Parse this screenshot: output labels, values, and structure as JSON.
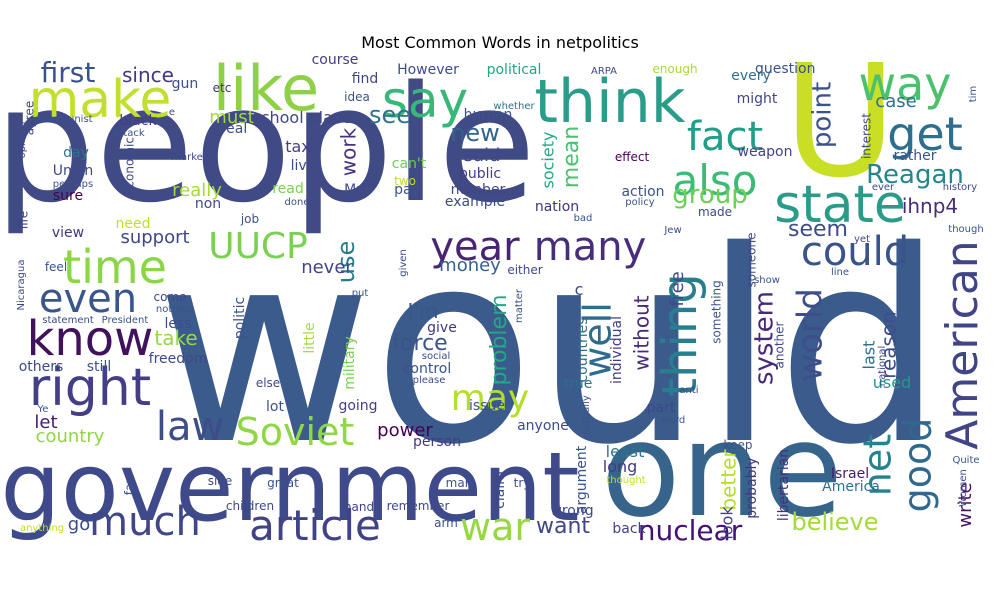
{
  "chart_data": {
    "type": "wordcloud",
    "title": "Most Common Words in netpolitics",
    "palette": "viridis",
    "words": [
      {
        "text": "would",
        "color": "#3b5b8c"
      },
      {
        "text": "people",
        "color": "#404a85"
      },
      {
        "text": "one",
        "color": "#36648b"
      },
      {
        "text": "U",
        "color": "#c8df26"
      },
      {
        "text": "government",
        "color": "#3f4a8a"
      },
      {
        "text": "think",
        "color": "#2a9d8a"
      },
      {
        "text": "like",
        "color": "#8ed147"
      },
      {
        "text": "say",
        "color": "#37b878"
      },
      {
        "text": "make",
        "color": "#c3df2d"
      },
      {
        "text": "way",
        "color": "#4ac16d"
      },
      {
        "text": "get",
        "color": "#2e6e8e"
      },
      {
        "text": "state",
        "color": "#2a9b88"
      },
      {
        "text": "fact",
        "color": "#1f9f88"
      },
      {
        "text": "also",
        "color": "#3bbb75"
      },
      {
        "text": "right",
        "color": "#433e85"
      },
      {
        "text": "know",
        "color": "#41125c"
      },
      {
        "text": "time",
        "color": "#8bd646"
      },
      {
        "text": "even",
        "color": "#39568c"
      },
      {
        "text": "year",
        "color": "#482475"
      },
      {
        "text": "many",
        "color": "#472d7b"
      },
      {
        "text": "could",
        "color": "#3a538b"
      },
      {
        "text": "UUCP",
        "color": "#7ad151"
      },
      {
        "text": "well",
        "color": "#2f6b8e"
      },
      {
        "text": "thing",
        "color": "#287d8e"
      },
      {
        "text": "American",
        "color": "#414487"
      },
      {
        "text": "world",
        "color": "#3d4e8a"
      },
      {
        "text": "law",
        "color": "#3d4d8a"
      },
      {
        "text": "Soviet",
        "color": "#8fd744"
      },
      {
        "text": "article",
        "color": "#414287"
      },
      {
        "text": "much",
        "color": "#404688"
      },
      {
        "text": "war",
        "color": "#95d840"
      },
      {
        "text": "good",
        "color": "#31688e"
      },
      {
        "text": "net",
        "color": "#26828e"
      },
      {
        "text": "may",
        "color": "#b5de2b"
      },
      {
        "text": "nuclear",
        "color": "#440f76"
      },
      {
        "text": "believe",
        "color": "#a5db36"
      },
      {
        "text": "Reagan",
        "color": "#25858e"
      },
      {
        "text": "group",
        "color": "#6ece58"
      },
      {
        "text": "point",
        "color": "#3b528b"
      },
      {
        "text": "seem",
        "color": "#3d4d8a"
      },
      {
        "text": "first",
        "color": "#3b528b"
      },
      {
        "text": "since",
        "color": "#453781"
      },
      {
        "text": "see",
        "color": "#2c738e"
      },
      {
        "text": "new",
        "color": "#33638d"
      },
      {
        "text": "said",
        "color": "#3e4a89"
      },
      {
        "text": "mean",
        "color": "#4ac16d"
      },
      {
        "text": "use",
        "color": "#287c8e"
      },
      {
        "text": "work",
        "color": "#46327e"
      },
      {
        "text": "problem",
        "color": "#22a884"
      },
      {
        "text": "I'm",
        "color": "#39568c"
      },
      {
        "text": "force",
        "color": "#3b528b"
      },
      {
        "text": "system",
        "color": "#482878"
      },
      {
        "text": "reason",
        "color": "#3e4c8a"
      },
      {
        "text": "want",
        "color": "#414487"
      },
      {
        "text": "country",
        "color": "#8fd744"
      },
      {
        "text": "ihnp4",
        "color": "#472c7a"
      },
      {
        "text": "support",
        "color": "#3f4788"
      },
      {
        "text": "never",
        "color": "#414487"
      },
      {
        "text": "take",
        "color": "#95d840"
      },
      {
        "text": "money",
        "color": "#33638d"
      },
      {
        "text": "really",
        "color": "#a2da37"
      },
      {
        "text": "without",
        "color": "#472a7a"
      },
      {
        "text": "power",
        "color": "#440154"
      },
      {
        "text": "let",
        "color": "#481a6c"
      },
      {
        "text": "go",
        "color": "#3e4989"
      },
      {
        "text": "free",
        "color": "#3f4889"
      },
      {
        "text": "better",
        "color": "#b5de2b"
      },
      {
        "text": "write",
        "color": "#471164"
      },
      {
        "text": "used",
        "color": "#1f9a8a"
      },
      {
        "text": "last",
        "color": "#2d708e"
      },
      {
        "text": "case",
        "color": "#2c728e"
      },
      {
        "text": "least",
        "color": "#2c738e"
      },
      {
        "text": "long",
        "color": "#443a83"
      },
      {
        "text": "look",
        "color": "#433e85"
      },
      {
        "text": "America",
        "color": "#2d718e"
      },
      {
        "text": "Israel",
        "color": "#48196b"
      },
      {
        "text": "libertarian",
        "color": "#46307e"
      },
      {
        "text": "probably",
        "color": "#453581"
      },
      {
        "text": "keep",
        "color": "#3b528b"
      },
      {
        "text": "must",
        "color": "#a2da37"
      },
      {
        "text": "school",
        "color": "#404688"
      },
      {
        "text": "place",
        "color": "#3f4788"
      },
      {
        "text": "tax",
        "color": "#424086"
      },
      {
        "text": "live",
        "color": "#3e4a89"
      },
      {
        "text": "read",
        "color": "#7ad151"
      },
      {
        "text": "pay",
        "color": "#3b528b"
      },
      {
        "text": "can't",
        "color": "#6ece58"
      },
      {
        "text": "two",
        "color": "#c0df25"
      },
      {
        "text": "Mr",
        "color": "#3d4d8a"
      },
      {
        "text": "non",
        "color": "#3e4a89"
      },
      {
        "text": "job",
        "color": "#3b528b"
      },
      {
        "text": "need",
        "color": "#c0df25"
      },
      {
        "text": "view",
        "color": "#453781"
      },
      {
        "text": "day",
        "color": "#2c738e"
      },
      {
        "text": "Union",
        "color": "#3e4989"
      },
      {
        "text": "sure",
        "color": "#440154"
      },
      {
        "text": "black",
        "color": "#433d84"
      },
      {
        "text": "real",
        "color": "#3e4c8a"
      },
      {
        "text": "etc",
        "color": "#46317e"
      },
      {
        "text": "gun",
        "color": "#3d4d8a"
      },
      {
        "text": "course",
        "color": "#433e85"
      },
      {
        "text": "find",
        "color": "#404588"
      },
      {
        "text": "idea",
        "color": "#3b528b"
      },
      {
        "text": "However",
        "color": "#3e4c8a"
      },
      {
        "text": "political",
        "color": "#21a685"
      },
      {
        "text": "whether",
        "color": "#2c738e"
      },
      {
        "text": "ARPA",
        "color": "#3e4989"
      },
      {
        "text": "enough",
        "color": "#a8db34"
      },
      {
        "text": "every",
        "color": "#2d708e"
      },
      {
        "text": "question",
        "color": "#3b528b"
      },
      {
        "text": "might",
        "color": "#3f4788"
      },
      {
        "text": "interest",
        "color": "#3e4989"
      },
      {
        "text": "human",
        "color": "#3b528b"
      },
      {
        "text": "society",
        "color": "#22a884"
      },
      {
        "text": "public",
        "color": "#433e85"
      },
      {
        "text": "number",
        "color": "#404588"
      },
      {
        "text": "example",
        "color": "#3e4c8a"
      },
      {
        "text": "nation",
        "color": "#46327e"
      },
      {
        "text": "action",
        "color": "#3b528b"
      },
      {
        "text": "policy",
        "color": "#3b528b"
      },
      {
        "text": "made",
        "color": "#3e4989"
      },
      {
        "text": "effect",
        "color": "#440154"
      },
      {
        "text": "weapon",
        "color": "#404588"
      },
      {
        "text": "rather",
        "color": "#3b528b"
      },
      {
        "text": "history",
        "color": "#3e4989"
      },
      {
        "text": "ever",
        "color": "#3e4989"
      },
      {
        "text": "bad",
        "color": "#3b528b"
      },
      {
        "text": "give",
        "color": "#453581"
      },
      {
        "text": "control",
        "color": "#3b528b"
      },
      {
        "text": "social",
        "color": "#3e4989"
      },
      {
        "text": "please",
        "color": "#3e4c8a"
      },
      {
        "text": "countries",
        "color": "#2d708e"
      },
      {
        "text": "individual",
        "color": "#433e85"
      },
      {
        "text": "true",
        "color": "#2d708e"
      },
      {
        "text": "part",
        "color": "#3f4788"
      },
      {
        "text": "anti",
        "color": "#3e4989"
      },
      {
        "text": "word",
        "color": "#3b528b"
      },
      {
        "text": "issue",
        "color": "#3b528b"
      },
      {
        "text": "person",
        "color": "#453781"
      },
      {
        "text": "anyone",
        "color": "#3e4c8a"
      },
      {
        "text": "wrong",
        "color": "#3f4788"
      },
      {
        "text": "back",
        "color": "#404588"
      },
      {
        "text": "argument",
        "color": "#3b528b"
      },
      {
        "text": "claim",
        "color": "#3e4989"
      },
      {
        "text": "try",
        "color": "#3e4c8a"
      },
      {
        "text": "man",
        "color": "#3b528b"
      },
      {
        "text": "remember",
        "color": "#3e4989"
      },
      {
        "text": "arm",
        "color": "#3b528b"
      },
      {
        "text": "hand",
        "color": "#404588"
      },
      {
        "text": "great",
        "color": "#3b528b"
      },
      {
        "text": "side",
        "color": "#3e4989"
      },
      {
        "text": "children",
        "color": "#3f4788"
      },
      {
        "text": "far",
        "color": "#3b528b"
      },
      {
        "text": "anything",
        "color": "#c0df25"
      },
      {
        "text": "lot",
        "color": "#3b528b"
      },
      {
        "text": "else",
        "color": "#3e4989"
      },
      {
        "text": "going",
        "color": "#433e85"
      },
      {
        "text": "military",
        "color": "#7ad151"
      },
      {
        "text": "little",
        "color": "#a8db34"
      },
      {
        "text": "politic",
        "color": "#3b528b"
      },
      {
        "text": "less",
        "color": "#3e4c8a"
      },
      {
        "text": "freedom",
        "color": "#3e4989"
      },
      {
        "text": "still",
        "color": "#3b528b"
      },
      {
        "text": "others",
        "color": "#3e4989"
      },
      {
        "text": "come",
        "color": "#3f4788"
      },
      {
        "text": "nothing",
        "color": "#3b528b"
      },
      {
        "text": "statement",
        "color": "#3e4989"
      },
      {
        "text": "President",
        "color": "#3b528b"
      },
      {
        "text": "Nicaragua",
        "color": "#3f4788"
      },
      {
        "text": "feel",
        "color": "#3b528b"
      },
      {
        "text": "Ye",
        "color": "#3b528b"
      },
      {
        "text": "agree",
        "color": "#3e4989"
      },
      {
        "text": "Communist",
        "color": "#3b528b"
      },
      {
        "text": "opinion",
        "color": "#3e4989"
      },
      {
        "text": "life",
        "color": "#3f4788"
      },
      {
        "text": "perhaps",
        "color": "#3b528b"
      },
      {
        "text": "economic",
        "color": "#3e4989"
      },
      {
        "text": "attack",
        "color": "#3b528b"
      },
      {
        "text": "market",
        "color": "#3e4989"
      },
      {
        "text": "e",
        "color": "#3b528b"
      },
      {
        "text": "either",
        "color": "#3e4989"
      },
      {
        "text": "put",
        "color": "#3b528b"
      },
      {
        "text": "given",
        "color": "#3e4989"
      },
      {
        "text": "matter",
        "color": "#3b528b"
      },
      {
        "text": "someone",
        "color": "#3e4989"
      },
      {
        "text": "show",
        "color": "#3b528b"
      },
      {
        "text": "another",
        "color": "#3e4989"
      },
      {
        "text": "something",
        "color": "#3b528b"
      },
      {
        "text": "national",
        "color": "#3e4989"
      },
      {
        "text": "line",
        "color": "#3b528b"
      },
      {
        "text": "yet",
        "color": "#3e4989"
      },
      {
        "text": "though",
        "color": "#3b528b"
      },
      {
        "text": "Jew",
        "color": "#3e4989"
      },
      {
        "text": "actually",
        "color": "#3b528b"
      },
      {
        "text": "c",
        "color": "#3e4989"
      },
      {
        "text": "tim",
        "color": "#3b528b"
      },
      {
        "text": "Women",
        "color": "#3e4989"
      },
      {
        "text": "Quite",
        "color": "#3b528b"
      },
      {
        "text": "thought",
        "color": "#c0df25"
      },
      {
        "text": "done",
        "color": "#3b528b"
      }
    ]
  }
}
